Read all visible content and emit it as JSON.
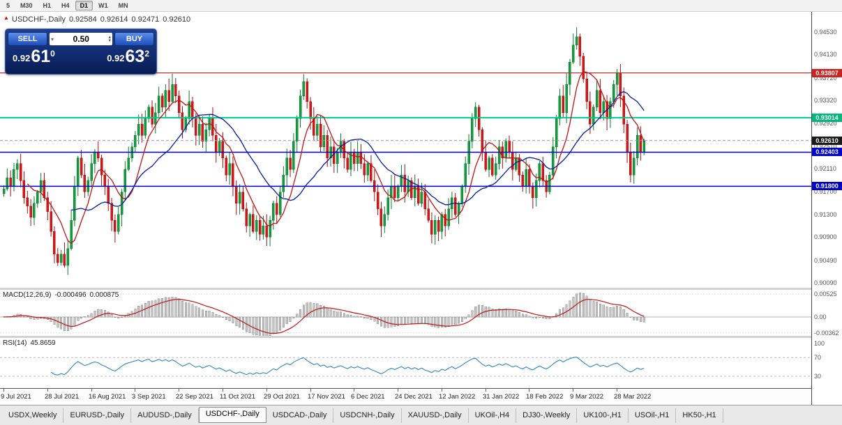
{
  "toolbar": {
    "timeframes": [
      "5",
      "M30",
      "H1",
      "H4",
      "D1",
      "W1",
      "MN"
    ],
    "active": "D1"
  },
  "chart": {
    "info": {
      "symbol": "USDCHF-,Daily",
      "open": "0.92584",
      "high": "0.92614",
      "low": "0.92471",
      "close": "0.92610"
    },
    "trade_panel": {
      "sell_label": "SELL",
      "buy_label": "BUY",
      "volume": "0.50",
      "bid": {
        "base": "0.92",
        "big": "61",
        "sup": "0"
      },
      "ask": {
        "base": "0.92",
        "big": "63",
        "sup": "2"
      }
    },
    "axis_ticks": [
      "0.94530",
      "0.94130",
      "0.93720",
      "0.93320",
      "0.92920",
      "0.92510",
      "0.92110",
      "0.91700",
      "0.91300",
      "0.90900",
      "0.90490",
      "0.90090"
    ],
    "hlines": [
      {
        "price": 0.93807,
        "label": "0.93807",
        "color": "#c03030",
        "box": "#cc2222",
        "width": 1.3
      },
      {
        "price": 0.93014,
        "label": "0.93014",
        "color": "#00c98c",
        "box": "#00b87a",
        "width": 2
      },
      {
        "price": 0.92403,
        "label": "0.92403",
        "color": "#0000cc",
        "box": "#0000cc",
        "width": 1.5
      },
      {
        "price": 0.918,
        "label": "0.91800",
        "color": "#0000cc",
        "box": "#0000cc",
        "width": 1.5
      }
    ],
    "current_price": {
      "label": "0.92610",
      "price": 0.9261,
      "box": "#1a1a1a"
    },
    "dates": [
      "9 Jul 2021",
      "28 Jul 2021",
      "16 Aug 2021",
      "3 Sep 2021",
      "22 Sep 2021",
      "11 Oct 2021",
      "29 Oct 2021",
      "17 Nov 2021",
      "6 Dec 2021",
      "24 Dec 2021",
      "12 Jan 2022",
      "31 Jan 2022",
      "18 Feb 2022",
      "9 Mar 2022",
      "28 Mar 2022"
    ]
  },
  "macd": {
    "label": "MACD(12,26,9)",
    "value_main": "-0.000496",
    "value_signal": "0.000875",
    "axis": [
      "0.00525",
      "0.00",
      "-0.00362"
    ]
  },
  "rsi": {
    "label": "RSI(14)",
    "value": "45.8659",
    "axis": [
      "100",
      "70",
      "30"
    ]
  },
  "tabs": {
    "items": [
      "USDX,Weekly",
      "EURUSD-,Daily",
      "AUDUSD-,Daily",
      "USDCHF-,Daily",
      "USDCAD-,Daily",
      "USDCNH-,Daily",
      "XAUUSD-,Daily",
      "UKOil-,H4",
      "DJ30-,Weekly",
      "UK100-,H1",
      "USOil-,H1",
      "HK50-,H1"
    ],
    "active_index": 3
  },
  "chart_data": {
    "type": "candlestick",
    "symbol": "USDCHF",
    "timeframe": "Daily",
    "price_top": 0.948877,
    "price_bottom": 0.900037,
    "candles_per_label": 13,
    "closes": [
      0.9175,
      0.9195,
      0.918,
      0.921,
      0.922,
      0.919,
      0.916,
      0.9145,
      0.9125,
      0.915,
      0.917,
      0.919,
      0.916,
      0.9135,
      0.91,
      0.906,
      0.9045,
      0.906,
      0.904,
      0.907,
      0.912,
      0.918,
      0.923,
      0.92,
      0.917,
      0.919,
      0.922,
      0.924,
      0.923,
      0.92,
      0.918,
      0.915,
      0.912,
      0.91,
      0.913,
      0.917,
      0.921,
      0.923,
      0.925,
      0.927,
      0.929,
      0.927,
      0.93,
      0.932,
      0.929,
      0.931,
      0.934,
      0.932,
      0.935,
      0.933,
      0.936,
      0.934,
      0.931,
      0.928,
      0.93,
      0.933,
      0.93,
      0.927,
      0.929,
      0.926,
      0.928,
      0.93,
      0.927,
      0.924,
      0.926,
      0.923,
      0.92,
      0.922,
      0.918,
      0.915,
      0.917,
      0.914,
      0.911,
      0.913,
      0.91,
      0.912,
      0.9095,
      0.911,
      0.909,
      0.912,
      0.915,
      0.913,
      0.917,
      0.92,
      0.923,
      0.921,
      0.926,
      0.93,
      0.934,
      0.9365,
      0.933,
      0.93,
      0.927,
      0.929,
      0.925,
      0.927,
      0.923,
      0.925,
      0.922,
      0.924,
      0.926,
      0.923,
      0.921,
      0.924,
      0.922,
      0.924,
      0.922,
      0.92,
      0.922,
      0.919,
      0.917,
      0.914,
      0.911,
      0.913,
      0.916,
      0.918,
      0.916,
      0.918,
      0.92,
      0.917,
      0.919,
      0.916,
      0.918,
      0.915,
      0.917,
      0.914,
      0.912,
      0.9095,
      0.912,
      0.91,
      0.913,
      0.911,
      0.914,
      0.916,
      0.913,
      0.915,
      0.918,
      0.922,
      0.926,
      0.93,
      0.932,
      0.928,
      0.924,
      0.921,
      0.923,
      0.92,
      0.922,
      0.925,
      0.923,
      0.926,
      0.924,
      0.921,
      0.923,
      0.92,
      0.918,
      0.921,
      0.918,
      0.916,
      0.919,
      0.922,
      0.919,
      0.917,
      0.92,
      0.925,
      0.93,
      0.934,
      0.931,
      0.936,
      0.94,
      0.943,
      0.9445,
      0.941,
      0.937,
      0.933,
      0.929,
      0.932,
      0.935,
      0.931,
      0.933,
      0.93,
      0.933,
      0.936,
      0.938,
      0.934,
      0.929,
      0.924,
      0.92,
      0.923,
      0.927,
      0.924,
      0.9261
    ]
  }
}
